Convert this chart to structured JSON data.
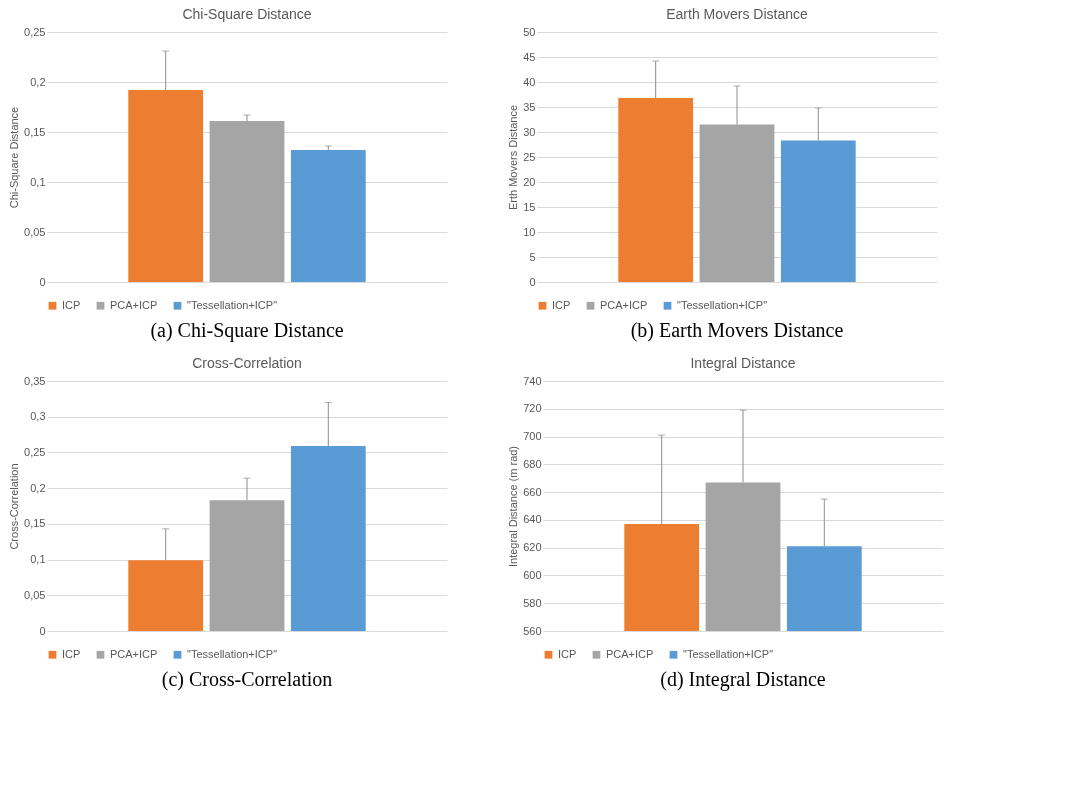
{
  "chart_data": [
    {
      "type": "bar",
      "title": "Chi-Square Distance",
      "ylabel": "Chi-Square Distance",
      "categories": [
        null
      ],
      "legend": "bottom",
      "grid": "y",
      "tick_labels": "y",
      "ylim": [
        0,
        0.25
      ],
      "yticks": [
        0,
        {
          "value": 0.05,
          "label": "0,05"
        },
        {
          "value": 0.1,
          "label": "0,1"
        },
        {
          "value": 0.15,
          "label": "0,15"
        },
        {
          "value": 0.2,
          "label": "0,2"
        },
        {
          "value": 0.25,
          "label": "0,25"
        }
      ],
      "series": [
        {
          "name": "ICP",
          "color": "#ed7d31",
          "values": [
            0.192
          ],
          "errors": [
            [
              0.192,
              0.231
            ]
          ]
        },
        {
          "name": "PCA+ICP",
          "color": "#a5a5a5",
          "values": [
            0.161
          ],
          "errors": [
            [
              0.161,
              0.167
            ]
          ]
        },
        {
          "name": "\"Tessellation+ICP\"",
          "color": "#5b9bd5",
          "values": [
            0.132
          ],
          "errors": [
            [
              0.132,
              0.136
            ]
          ]
        }
      ],
      "annotations": [
        "(a) Chi-Square Distance"
      ]
    },
    {
      "type": "bar",
      "title": "Earth Movers Distance",
      "ylabel": "Erth Movers Distance",
      "categories": [
        null
      ],
      "legend": "bottom",
      "grid": "y",
      "tick_labels": "y",
      "ylim": [
        0,
        50
      ],
      "yticks": [
        0,
        5,
        10,
        15,
        20,
        25,
        30,
        35,
        40,
        45,
        50
      ],
      "series": [
        {
          "name": "ICP",
          "color": "#ed7d31",
          "values": [
            36.8
          ],
          "errors": [
            [
              36.8,
              44.2
            ]
          ]
        },
        {
          "name": "PCA+ICP",
          "color": "#a5a5a5",
          "values": [
            31.5
          ],
          "errors": [
            [
              31.5,
              39.2
            ]
          ]
        },
        {
          "name": "\"Tessellation+ICP\"",
          "color": "#5b9bd5",
          "values": [
            28.3
          ],
          "errors": [
            [
              28.3,
              34.8
            ]
          ]
        }
      ],
      "annotations": [
        "(b) Earth Movers Distance"
      ]
    },
    {
      "type": "bar",
      "title": "Cross-Correlation",
      "ylabel": "Cross-Correlation",
      "categories": [
        null
      ],
      "legend": "bottom",
      "grid": "y",
      "tick_labels": "y",
      "ylim": [
        0,
        0.35
      ],
      "yticks": [
        0,
        {
          "value": 0.05,
          "label": "0,05"
        },
        {
          "value": 0.1,
          "label": "0,1"
        },
        {
          "value": 0.15,
          "label": "0,15"
        },
        {
          "value": 0.2,
          "label": "0,2"
        },
        {
          "value": 0.25,
          "label": "0,25"
        },
        {
          "value": 0.3,
          "label": "0,3"
        },
        {
          "value": 0.35,
          "label": "0,35"
        }
      ],
      "series": [
        {
          "name": "ICP",
          "color": "#ed7d31",
          "values": [
            0.099
          ],
          "errors": [
            [
              0.099,
              0.143
            ]
          ]
        },
        {
          "name": "PCA+ICP",
          "color": "#a5a5a5",
          "values": [
            0.183
          ],
          "errors": [
            [
              0.183,
              0.214
            ]
          ]
        },
        {
          "name": "\"Tessellation+ICP\"",
          "color": "#5b9bd5",
          "values": [
            0.259
          ],
          "errors": [
            [
              0.259,
              0.32
            ]
          ]
        }
      ],
      "annotations": [
        "(c) Cross-Correlation"
      ]
    },
    {
      "type": "bar",
      "title": "Integral Distance",
      "ylabel": "Integral Distance (m rad)",
      "categories": [
        null
      ],
      "legend": "bottom",
      "grid": "y",
      "tick_labels": "y",
      "ylim": [
        560,
        740
      ],
      "yticks": [
        560,
        580,
        600,
        620,
        640,
        660,
        680,
        700,
        720,
        740
      ],
      "series": [
        {
          "name": "ICP",
          "color": "#ed7d31",
          "values": [
            637
          ],
          "errors": [
            [
              637,
              701
            ]
          ]
        },
        {
          "name": "PCA+ICP",
          "color": "#a5a5a5",
          "values": [
            667
          ],
          "errors": [
            [
              667,
              719
            ]
          ]
        },
        {
          "name": "\"Tessellation+ICP\"",
          "color": "#5b9bd5",
          "values": [
            621
          ],
          "errors": [
            [
              621,
              655
            ]
          ]
        }
      ],
      "annotations": [
        "(d) Integral Distance"
      ]
    }
  ]
}
